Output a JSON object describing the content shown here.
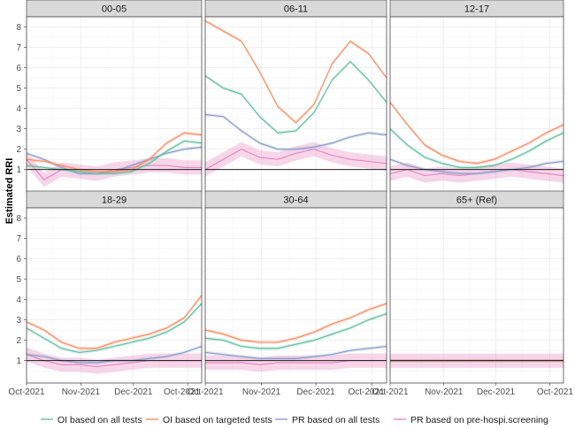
{
  "chart_data": {
    "type": "line",
    "ylabel": "Estimated RRI",
    "xlabel": "",
    "x_ticks": [
      "Oct-2021",
      "Nov-2021",
      "Dec-2021",
      "Oct-2021"
    ],
    "y_ticks": [
      1,
      2,
      3,
      4,
      5,
      6,
      7,
      8
    ],
    "ylim": [
      -0.1,
      8.5
    ],
    "xlim_days": [
      0,
      100
    ],
    "reference_line": 1,
    "colors": {
      "oi_all": "#66c2a5",
      "oi_targeted": "#fc8d62",
      "pr_all": "#8da0cb",
      "pr_prehospi": "#e78ac3"
    },
    "legend": [
      {
        "key": "oi_all",
        "label": "OI based on all tests"
      },
      {
        "key": "oi_targeted",
        "label": "OI based on targeted tests"
      },
      {
        "key": "pr_all",
        "label": "PR based on all tests"
      },
      {
        "key": "pr_prehospi",
        "label": "PR based on pre-hospi.screening"
      }
    ],
    "x_days": [
      0,
      10,
      20,
      30,
      40,
      50,
      60,
      70,
      80,
      90,
      100
    ],
    "panels": [
      {
        "title": "00-05",
        "series": {
          "oi_all": [
            1.2,
            1.1,
            1.0,
            0.9,
            0.8,
            0.8,
            0.9,
            1.3,
            1.9,
            2.4,
            2.3
          ],
          "oi_targeted": [
            1.5,
            1.4,
            1.2,
            1.0,
            0.9,
            0.9,
            1.0,
            1.5,
            2.3,
            2.8,
            2.7
          ],
          "pr_all": [
            1.8,
            1.5,
            1.1,
            0.8,
            0.8,
            0.9,
            1.2,
            1.5,
            1.8,
            2.0,
            2.1
          ],
          "pr_prehospi": [
            1.5,
            0.5,
            1.0,
            0.9,
            0.8,
            1.0,
            1.1,
            1.2,
            1.2,
            1.1,
            1.1
          ]
        }
      },
      {
        "title": "06-11",
        "series": {
          "oi_all": [
            5.6,
            5.0,
            4.7,
            3.6,
            2.8,
            2.9,
            3.8,
            5.4,
            6.3,
            5.4,
            4.3
          ],
          "oi_targeted": [
            8.3,
            7.8,
            7.3,
            5.8,
            4.1,
            3.3,
            4.2,
            6.2,
            7.3,
            6.7,
            5.5
          ],
          "pr_all": [
            3.7,
            3.6,
            2.9,
            2.3,
            2.0,
            2.0,
            2.1,
            2.3,
            2.6,
            2.8,
            2.7
          ],
          "pr_prehospi": [
            1.0,
            1.5,
            2.0,
            1.6,
            1.5,
            1.8,
            2.0,
            1.7,
            1.5,
            1.4,
            1.3
          ]
        }
      },
      {
        "title": "12-17",
        "series": {
          "oi_all": [
            3.0,
            2.2,
            1.6,
            1.3,
            1.1,
            1.1,
            1.2,
            1.5,
            1.9,
            2.4,
            2.8
          ],
          "oi_targeted": [
            4.3,
            3.2,
            2.2,
            1.7,
            1.4,
            1.3,
            1.5,
            1.9,
            2.3,
            2.8,
            3.2
          ],
          "pr_all": [
            1.5,
            1.2,
            1.0,
            0.9,
            0.8,
            0.8,
            0.9,
            1.0,
            1.1,
            1.3,
            1.4
          ],
          "pr_prehospi": [
            0.8,
            1.0,
            0.7,
            0.8,
            0.7,
            0.8,
            0.9,
            1.0,
            0.9,
            0.8,
            0.7
          ]
        }
      },
      {
        "title": "18-29",
        "series": {
          "oi_all": [
            2.6,
            2.1,
            1.6,
            1.4,
            1.5,
            1.7,
            1.9,
            2.1,
            2.4,
            2.9,
            3.8
          ],
          "oi_targeted": [
            2.9,
            2.5,
            1.9,
            1.6,
            1.6,
            1.9,
            2.1,
            2.3,
            2.6,
            3.1,
            4.2
          ],
          "pr_all": [
            1.3,
            1.2,
            1.0,
            0.9,
            0.9,
            1.0,
            1.0,
            1.1,
            1.2,
            1.4,
            1.7
          ],
          "pr_prehospi": [
            1.3,
            1.0,
            0.8,
            0.8,
            0.7,
            0.8,
            0.9,
            1.0,
            1.0,
            1.0,
            1.0
          ]
        }
      },
      {
        "title": "30-64",
        "series": {
          "oi_all": [
            2.1,
            2.0,
            1.7,
            1.6,
            1.6,
            1.8,
            2.0,
            2.3,
            2.6,
            3.0,
            3.3
          ],
          "oi_targeted": [
            2.5,
            2.3,
            2.0,
            1.9,
            1.9,
            2.1,
            2.4,
            2.8,
            3.1,
            3.5,
            3.8
          ],
          "pr_all": [
            1.4,
            1.3,
            1.2,
            1.1,
            1.1,
            1.1,
            1.2,
            1.3,
            1.5,
            1.6,
            1.7
          ],
          "pr_prehospi": [
            0.9,
            0.9,
            0.9,
            0.8,
            0.9,
            0.9,
            0.9,
            0.9,
            1.0,
            1.0,
            1.0
          ]
        }
      },
      {
        "title": "65+ (Ref)",
        "series": {
          "oi_all": [
            1,
            1,
            1,
            1,
            1,
            1,
            1,
            1,
            1,
            1,
            1
          ],
          "oi_targeted": [
            1,
            1,
            1,
            1,
            1,
            1,
            1,
            1,
            1,
            1,
            1
          ],
          "pr_all": [
            1,
            1,
            1,
            1,
            1,
            1,
            1,
            1,
            1,
            1,
            1
          ],
          "pr_prehospi": [
            1,
            1,
            1,
            1,
            1,
            1,
            1,
            1,
            1,
            1,
            1
          ]
        }
      }
    ]
  }
}
